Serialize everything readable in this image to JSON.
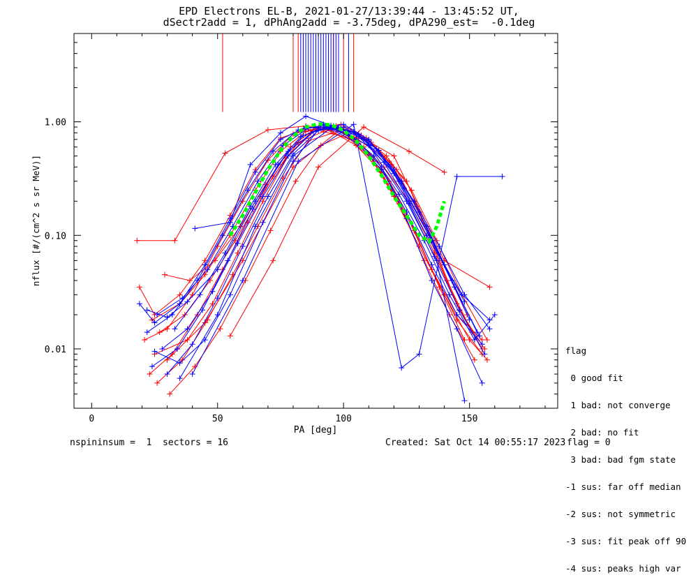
{
  "title_line1": "EPD Electrons EL-B, 2021-01-27/13:39:44 - 13:45:52 UT,",
  "title_line2": "dSectr2add = 1, dPhAng2add = -3.75deg, dPA290_est=  -0.1deg",
  "footer": {
    "left": "nspininsum =  1  sectors = 16",
    "created": "Created: Sat Oct 14 00:55:17 2023",
    "flag": "flag = 0"
  },
  "flag_legend": {
    "title": "flag",
    "items": [
      " 0 good fit",
      " 1 bad: not converge",
      " 2 bad: no fit",
      " 3 bad: bad fgm state",
      "-1 sus: far off median",
      "-2 sus: not symmetric",
      "-3 sus: fit peak off 90",
      "-4 sus: peaks high var"
    ]
  },
  "colors": {
    "red": "#ff0000",
    "blue": "#0000ff",
    "fit": "#00ff00",
    "axis": "#000000"
  },
  "chart_data": {
    "type": "line",
    "xlabel": "PA [deg]",
    "ylabel": "nflux [#/(cm^2 s sr MeV)]",
    "xlim": [
      -7,
      185
    ],
    "ylim": [
      0.003,
      6
    ],
    "yscale": "log",
    "xticks": [
      0,
      50,
      100,
      150
    ],
    "xtick_labels": [
      "0",
      "50",
      "100",
      "150"
    ],
    "yticks": [
      0.01,
      0.1,
      1.0
    ],
    "ytick_labels": [
      "0.01",
      "0.10",
      "1.00"
    ],
    "grid": false,
    "fit_curve": {
      "color": "green",
      "x": [
        55,
        60,
        65,
        70,
        75,
        80,
        85,
        90,
        95,
        100,
        105,
        110,
        115,
        120,
        125,
        130,
        134,
        137,
        140
      ],
      "y": [
        0.1,
        0.15,
        0.24,
        0.38,
        0.56,
        0.75,
        0.9,
        0.96,
        0.94,
        0.84,
        0.68,
        0.5,
        0.34,
        0.22,
        0.15,
        0.1,
        0.088,
        0.12,
        0.2
      ]
    },
    "red_vertical_lines_x": [
      52,
      80,
      82,
      84,
      96,
      100,
      104
    ],
    "blue_vertical_lines_x": [
      83,
      84,
      85,
      86,
      87,
      88,
      89,
      90,
      91,
      92,
      93,
      94,
      95,
      96,
      97,
      98,
      102
    ],
    "series": [
      {
        "color": "red",
        "x": [
          18,
          33,
          53,
          70,
          85,
          95,
          105,
          118,
          125,
          135,
          145,
          155
        ],
        "y": [
          0.09,
          0.09,
          0.53,
          0.85,
          0.92,
          0.88,
          0.72,
          0.45,
          0.3,
          0.09,
          0.025,
          0.01
        ]
      },
      {
        "color": "red",
        "x": [
          19,
          25,
          35,
          45,
          55,
          65,
          75,
          85,
          95,
          105,
          115,
          125,
          135,
          145,
          155
        ],
        "y": [
          0.035,
          0.02,
          0.03,
          0.06,
          0.15,
          0.38,
          0.72,
          0.86,
          0.83,
          0.62,
          0.36,
          0.15,
          0.05,
          0.02,
          0.012
        ]
      },
      {
        "color": "red",
        "x": [
          21,
          30,
          40,
          50,
          60,
          70,
          80,
          90,
          100,
          110,
          120,
          130,
          140,
          150,
          157
        ],
        "y": [
          0.012,
          0.015,
          0.03,
          0.08,
          0.2,
          0.46,
          0.78,
          0.88,
          0.8,
          0.52,
          0.22,
          0.08,
          0.03,
          0.012,
          0.008
        ]
      },
      {
        "color": "red",
        "x": [
          23,
          32,
          42,
          52,
          62,
          72,
          82,
          92,
          102,
          112,
          122,
          132,
          142,
          152
        ],
        "y": [
          0.006,
          0.009,
          0.02,
          0.05,
          0.13,
          0.33,
          0.66,
          0.82,
          0.72,
          0.45,
          0.19,
          0.06,
          0.02,
          0.008
        ]
      },
      {
        "color": "red",
        "x": [
          24,
          35,
          45,
          55,
          65,
          75,
          85,
          95,
          105,
          115,
          125,
          135,
          145,
          155
        ],
        "y": [
          0.018,
          0.025,
          0.045,
          0.1,
          0.25,
          0.55,
          0.82,
          0.9,
          0.7,
          0.4,
          0.16,
          0.05,
          0.018,
          0.009
        ]
      },
      {
        "color": "red",
        "x": [
          25,
          38,
          48,
          58,
          68,
          78,
          88,
          98,
          108,
          118,
          128,
          138,
          148
        ],
        "y": [
          0.009,
          0.012,
          0.025,
          0.07,
          0.2,
          0.5,
          0.85,
          0.86,
          0.6,
          0.3,
          0.11,
          0.035,
          0.012
        ]
      },
      {
        "color": "red",
        "x": [
          26,
          36,
          46,
          56,
          66,
          76,
          86,
          96,
          106,
          116,
          126,
          136,
          146,
          156
        ],
        "y": [
          0.005,
          0.008,
          0.018,
          0.045,
          0.12,
          0.32,
          0.68,
          0.8,
          0.65,
          0.4,
          0.2,
          0.07,
          0.022,
          0.01
        ]
      },
      {
        "color": "red",
        "x": [
          27,
          37,
          47,
          57,
          67,
          77,
          87,
          97,
          107,
          117,
          127,
          137,
          147,
          157
        ],
        "y": [
          0.014,
          0.02,
          0.04,
          0.09,
          0.22,
          0.48,
          0.8,
          0.92,
          0.76,
          0.5,
          0.25,
          0.09,
          0.03,
          0.012
        ]
      },
      {
        "color": "red",
        "x": [
          29,
          39,
          49,
          59,
          69,
          79,
          89,
          99,
          109,
          119,
          129,
          139,
          149
        ],
        "y": [
          0.045,
          0.04,
          0.06,
          0.12,
          0.28,
          0.6,
          0.88,
          0.95,
          0.72,
          0.42,
          0.18,
          0.06,
          0.02
        ]
      },
      {
        "color": "red",
        "x": [
          31,
          41,
          51,
          61,
          71,
          81,
          91,
          101,
          111,
          121,
          131,
          141,
          151
        ],
        "y": [
          0.004,
          0.007,
          0.015,
          0.04,
          0.11,
          0.3,
          0.62,
          0.78,
          0.66,
          0.38,
          0.14,
          0.04,
          0.014
        ]
      },
      {
        "color": "red",
        "x": [
          55,
          72,
          90,
          108,
          126,
          140
        ],
        "y": [
          0.013,
          0.06,
          0.4,
          0.9,
          0.55,
          0.36
        ]
      },
      {
        "color": "red",
        "x": [
          30,
          45,
          60,
          80,
          100,
          120,
          140,
          158
        ],
        "y": [
          0.008,
          0.017,
          0.06,
          0.4,
          0.9,
          0.5,
          0.06,
          0.035
        ]
      },
      {
        "color": "blue",
        "x": [
          19,
          25,
          35,
          45,
          55,
          65,
          75,
          85,
          95,
          105,
          115,
          125,
          135,
          145,
          155
        ],
        "y": [
          0.025,
          0.017,
          0.025,
          0.055,
          0.14,
          0.36,
          0.7,
          0.9,
          0.86,
          0.66,
          0.38,
          0.16,
          0.055,
          0.02,
          0.011
        ]
      },
      {
        "color": "blue",
        "x": [
          22,
          32,
          42,
          52,
          62,
          72,
          82,
          92,
          102,
          112,
          122,
          132,
          142,
          152,
          160
        ],
        "y": [
          0.014,
          0.02,
          0.04,
          0.1,
          0.25,
          0.55,
          0.85,
          0.93,
          0.78,
          0.5,
          0.23,
          0.09,
          0.03,
          0.012,
          0.02
        ]
      },
      {
        "color": "blue",
        "x": [
          24,
          34,
          44,
          54,
          64,
          74,
          84,
          94,
          104,
          114,
          124,
          134,
          144,
          154
        ],
        "y": [
          0.007,
          0.01,
          0.022,
          0.06,
          0.17,
          0.42,
          0.76,
          0.9,
          0.82,
          0.56,
          0.26,
          0.1,
          0.035,
          0.013
        ]
      },
      {
        "color": "blue",
        "x": [
          26,
          36,
          46,
          56,
          66,
          76,
          86,
          96,
          106,
          116,
          126,
          136,
          146,
          156
        ],
        "y": [
          0.02,
          0.028,
          0.05,
          0.12,
          0.3,
          0.62,
          0.88,
          0.92,
          0.74,
          0.44,
          0.19,
          0.065,
          0.022,
          0.009
        ]
      },
      {
        "color": "blue",
        "x": [
          28,
          38,
          48,
          58,
          68,
          78,
          88,
          98,
          108,
          118,
          128,
          138,
          148,
          158
        ],
        "y": [
          0.01,
          0.015,
          0.032,
          0.085,
          0.22,
          0.5,
          0.82,
          0.9,
          0.7,
          0.42,
          0.2,
          0.08,
          0.03,
          0.015
        ]
      },
      {
        "color": "blue",
        "x": [
          30,
          40,
          50,
          60,
          70,
          80,
          90,
          100,
          110,
          120,
          130,
          140,
          150
        ],
        "y": [
          0.006,
          0.011,
          0.028,
          0.08,
          0.22,
          0.52,
          0.84,
          0.9,
          0.68,
          0.38,
          0.16,
          0.055,
          0.018
        ]
      },
      {
        "color": "blue",
        "x": [
          33,
          43,
          53,
          63,
          73,
          83,
          93,
          103,
          113,
          123,
          133,
          143,
          153
        ],
        "y": [
          0.015,
          0.03,
          0.07,
          0.18,
          0.42,
          0.74,
          0.9,
          0.82,
          0.58,
          0.3,
          0.12,
          0.04,
          0.014
        ]
      },
      {
        "color": "blue",
        "x": [
          41,
          55,
          63,
          75,
          85,
          95,
          105,
          115,
          125,
          135,
          145,
          155
        ],
        "y": [
          0.115,
          0.13,
          0.42,
          0.8,
          1.12,
          0.93,
          0.7,
          0.4,
          0.14,
          0.04,
          0.015,
          0.005
        ]
      },
      {
        "color": "blue",
        "x": [
          25,
          35,
          45,
          55,
          68,
          80,
          90,
          100,
          110,
          122,
          135,
          148
        ],
        "y": [
          0.0095,
          0.0075,
          0.012,
          0.03,
          0.13,
          0.45,
          0.85,
          0.95,
          0.7,
          0.3,
          0.09,
          0.026
        ]
      },
      {
        "color": "blue",
        "x": [
          40,
          60,
          82,
          104,
          123,
          130,
          145,
          163
        ],
        "y": [
          0.006,
          0.04,
          0.45,
          0.95,
          0.0068,
          0.009,
          0.33,
          0.33
        ]
      },
      {
        "color": "blue",
        "x": [
          22,
          30,
          38,
          50,
          65,
          78,
          92,
          106,
          120,
          133,
          147,
          158
        ],
        "y": [
          0.022,
          0.019,
          0.026,
          0.05,
          0.2,
          0.55,
          0.95,
          0.78,
          0.35,
          0.1,
          0.03,
          0.018
        ]
      },
      {
        "color": "blue",
        "x": [
          35,
          50,
          65,
          80,
          95,
          110,
          125,
          137,
          148
        ],
        "y": [
          0.0055,
          0.02,
          0.12,
          0.5,
          0.88,
          0.62,
          0.2,
          0.06,
          0.0035
        ]
      }
    ]
  }
}
